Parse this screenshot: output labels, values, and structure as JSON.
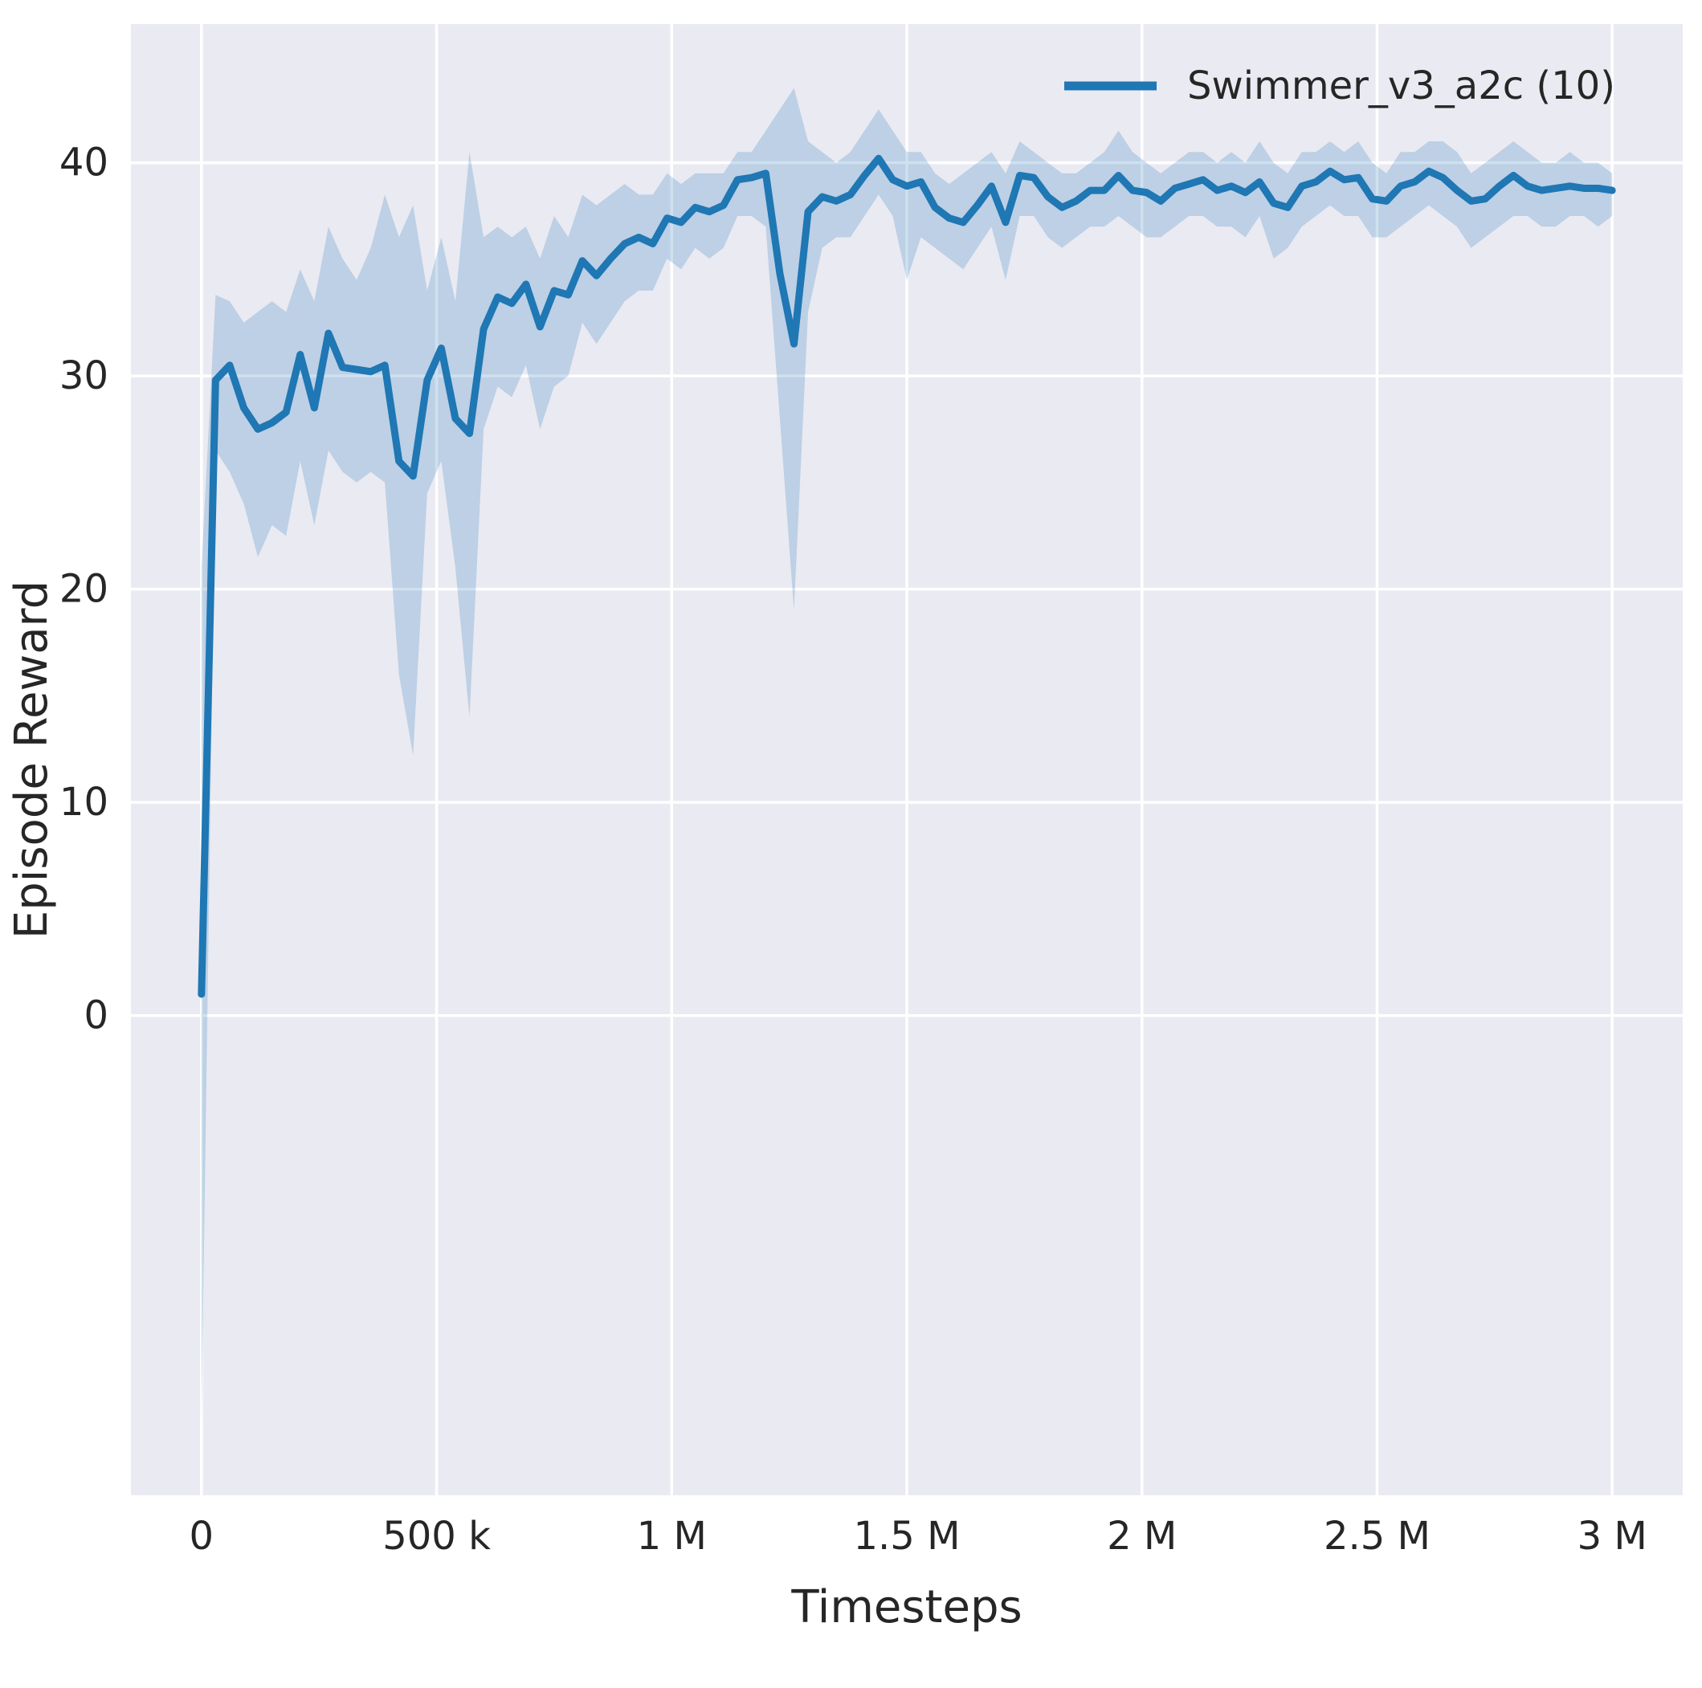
{
  "style": {
    "figure_background": "#ffffff",
    "axes_background": "#eaeaf2",
    "grid_color": "#ffffff",
    "text_color": "#262626",
    "line_color": "#1f77b4",
    "band_opacity": 0.22
  },
  "chart_data": {
    "type": "line",
    "title": "",
    "xlabel": "Timesteps",
    "ylabel": "Episode Reward",
    "grid": true,
    "legend": {
      "position": "upper right",
      "entries": [
        {
          "label": "Swimmer_v3_a2c (10)",
          "color": "#1f77b4"
        }
      ]
    },
    "xlim": [
      -150000,
      3150000
    ],
    "ylim": [
      -22.5,
      46.5
    ],
    "xticks": [
      {
        "value": 0,
        "label": "0"
      },
      {
        "value": 500000,
        "label": "500 k"
      },
      {
        "value": 1000000,
        "label": "1 M"
      },
      {
        "value": 1500000,
        "label": "1.5 M"
      },
      {
        "value": 2000000,
        "label": "2 M"
      },
      {
        "value": 2500000,
        "label": "2.5 M"
      },
      {
        "value": 3000000,
        "label": "3 M"
      }
    ],
    "yticks": [
      {
        "value": 0,
        "label": "0"
      },
      {
        "value": 10,
        "label": "10"
      },
      {
        "value": 20,
        "label": "20"
      },
      {
        "value": 30,
        "label": "30"
      },
      {
        "value": 40,
        "label": "40"
      }
    ],
    "series": [
      {
        "name": "Swimmer_v3_a2c (10)",
        "color": "#1f77b4",
        "x": [
          0,
          30000,
          60000,
          90000,
          120000,
          150000,
          180000,
          210000,
          240000,
          270000,
          300000,
          330000,
          360000,
          390000,
          420000,
          450000,
          480000,
          510000,
          540000,
          570000,
          600000,
          630000,
          660000,
          690000,
          720000,
          750000,
          780000,
          810000,
          840000,
          870000,
          900000,
          930000,
          960000,
          990000,
          1020000,
          1050000,
          1080000,
          1110000,
          1140000,
          1170000,
          1200000,
          1230000,
          1260000,
          1290000,
          1320000,
          1350000,
          1380000,
          1410000,
          1440000,
          1470000,
          1500000,
          1530000,
          1560000,
          1590000,
          1620000,
          1650000,
          1680000,
          1710000,
          1740000,
          1770000,
          1800000,
          1830000,
          1860000,
          1890000,
          1920000,
          1950000,
          1980000,
          2010000,
          2040000,
          2070000,
          2100000,
          2130000,
          2160000,
          2190000,
          2220000,
          2250000,
          2280000,
          2310000,
          2340000,
          2370000,
          2400000,
          2430000,
          2460000,
          2490000,
          2520000,
          2550000,
          2580000,
          2610000,
          2640000,
          2670000,
          2700000,
          2730000,
          2760000,
          2790000,
          2820000,
          2850000,
          2880000,
          2910000,
          2940000,
          2970000,
          3000000
        ],
        "mean": [
          1.0,
          29.8,
          30.5,
          28.5,
          27.5,
          27.8,
          28.3,
          31.0,
          28.5,
          32.0,
          30.4,
          30.3,
          30.2,
          30.5,
          26.0,
          25.3,
          29.8,
          31.3,
          28.0,
          27.3,
          32.2,
          33.7,
          33.4,
          34.3,
          32.3,
          34.0,
          33.8,
          35.4,
          34.7,
          35.5,
          36.2,
          36.5,
          36.2,
          37.4,
          37.2,
          37.9,
          37.7,
          38.0,
          39.2,
          39.3,
          39.5,
          34.8,
          31.5,
          37.7,
          38.4,
          38.2,
          38.5,
          39.4,
          40.2,
          39.2,
          38.9,
          39.1,
          37.9,
          37.4,
          37.2,
          38.0,
          38.9,
          37.2,
          39.4,
          39.3,
          38.4,
          37.9,
          38.2,
          38.7,
          38.7,
          39.4,
          38.7,
          38.6,
          38.2,
          38.8,
          39.0,
          39.2,
          38.7,
          38.9,
          38.6,
          39.1,
          38.1,
          37.9,
          38.9,
          39.1,
          39.6,
          39.2,
          39.3,
          38.3,
          38.2,
          38.9,
          39.1,
          39.6,
          39.3,
          38.7,
          38.2,
          38.3,
          38.9,
          39.4,
          38.9,
          38.7,
          38.8,
          38.9,
          38.8,
          38.8,
          38.7
        ],
        "band_lower": [
          -19.0,
          26.5,
          25.5,
          24.0,
          21.5,
          23.0,
          22.5,
          26.0,
          23.0,
          26.5,
          25.5,
          25.0,
          25.5,
          25.0,
          16.0,
          12.2,
          24.5,
          26.0,
          21.0,
          14.0,
          27.5,
          29.5,
          29.0,
          30.5,
          27.5,
          29.5,
          30.0,
          32.5,
          31.5,
          32.5,
          33.5,
          34.0,
          34.0,
          35.5,
          35.0,
          36.0,
          35.5,
          36.0,
          37.5,
          37.5,
          37.0,
          28.0,
          19.0,
          33.0,
          36.0,
          36.5,
          36.5,
          37.5,
          38.5,
          37.5,
          34.5,
          36.5,
          36.0,
          35.5,
          35.0,
          36.0,
          37.0,
          34.5,
          37.5,
          37.5,
          36.5,
          36.0,
          36.5,
          37.0,
          37.0,
          37.5,
          37.0,
          36.5,
          36.5,
          37.0,
          37.5,
          37.5,
          37.0,
          37.0,
          36.5,
          37.5,
          35.5,
          36.0,
          37.0,
          37.5,
          38.0,
          37.5,
          37.5,
          36.5,
          36.5,
          37.0,
          37.5,
          38.0,
          37.5,
          37.0,
          36.0,
          36.5,
          37.0,
          37.5,
          37.5,
          37.0,
          37.0,
          37.5,
          37.5,
          37.0,
          37.5
        ],
        "band_upper": [
          21.0,
          33.8,
          33.5,
          32.5,
          33.0,
          33.5,
          33.0,
          35.0,
          33.5,
          37.0,
          35.5,
          34.5,
          36.0,
          38.5,
          36.5,
          38.0,
          34.0,
          36.5,
          33.5,
          40.5,
          36.5,
          37.0,
          36.5,
          37.0,
          35.5,
          37.5,
          36.5,
          38.5,
          38.0,
          38.5,
          39.0,
          38.5,
          38.5,
          39.5,
          39.0,
          39.5,
          39.5,
          39.5,
          40.5,
          40.5,
          41.5,
          42.5,
          43.5,
          41.0,
          40.5,
          40.0,
          40.5,
          41.5,
          42.5,
          41.5,
          40.5,
          40.5,
          39.5,
          39.0,
          39.5,
          40.0,
          40.5,
          39.5,
          41.0,
          40.5,
          40.0,
          39.5,
          39.5,
          40.0,
          40.5,
          41.5,
          40.5,
          40.0,
          39.5,
          40.0,
          40.5,
          40.5,
          40.0,
          40.5,
          40.0,
          41.0,
          40.0,
          39.5,
          40.5,
          40.5,
          41.0,
          40.5,
          41.0,
          40.0,
          39.5,
          40.5,
          40.5,
          41.0,
          41.0,
          40.5,
          39.5,
          40.0,
          40.5,
          41.0,
          40.5,
          40.0,
          40.0,
          40.5,
          40.0,
          40.0,
          39.5
        ]
      }
    ]
  }
}
